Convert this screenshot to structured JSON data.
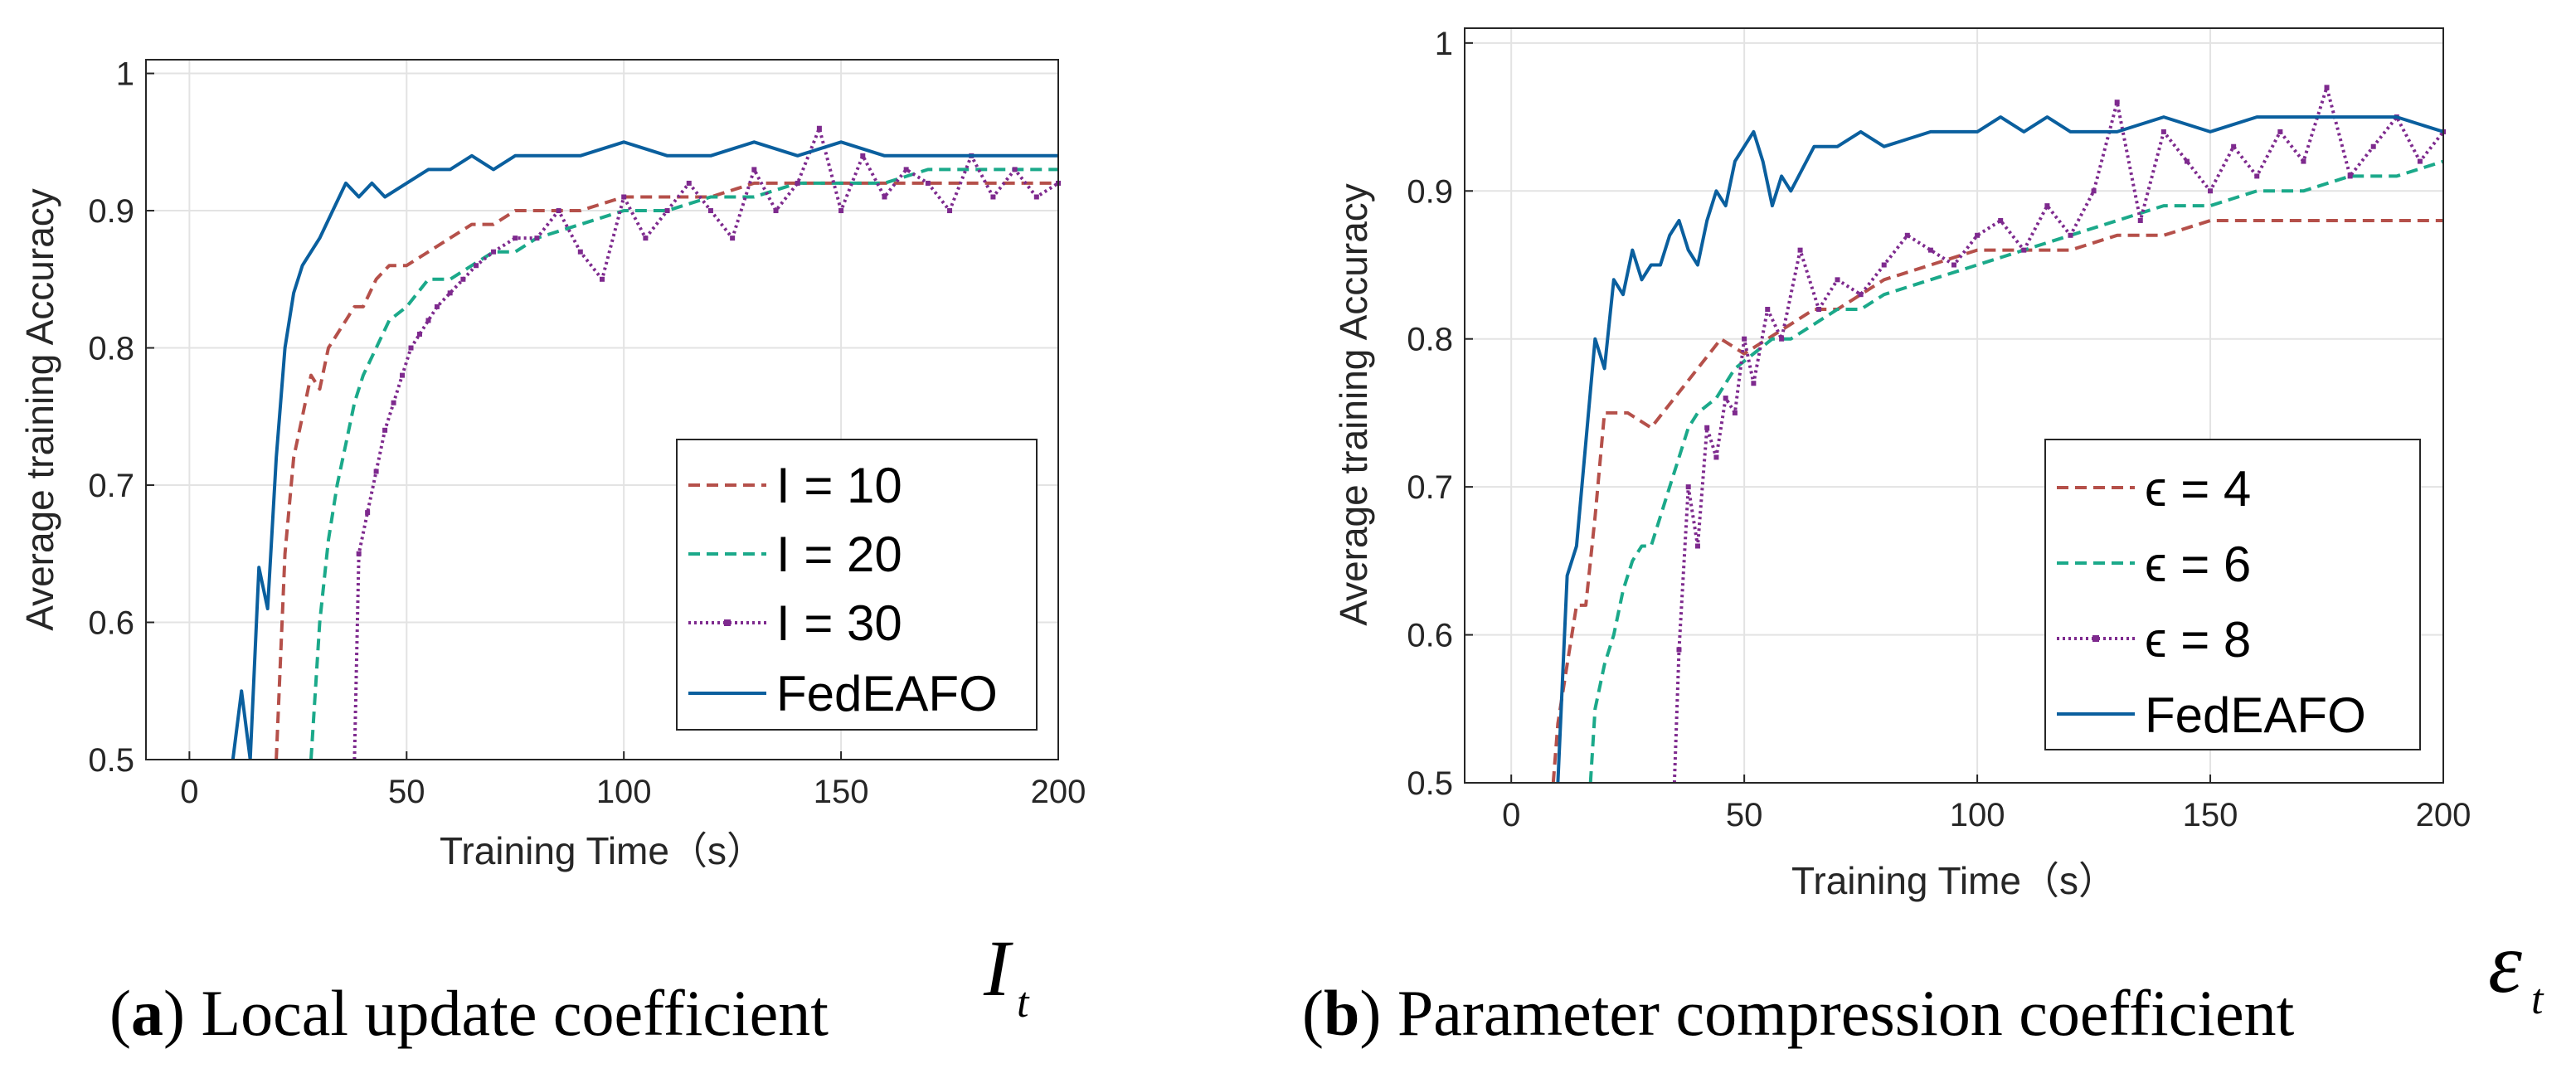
{
  "chart_data": [
    {
      "type": "line",
      "panel_label": "a",
      "caption": "Local update coefficient",
      "caption_symbol": "I",
      "caption_subscript": "t",
      "xlabel": "Training Time（s）",
      "ylabel": "Average training Accuracy",
      "xlim": [
        -10,
        200
      ],
      "ylim": [
        0.5,
        1.01
      ],
      "xticks": [
        "0",
        "50",
        "100",
        "150",
        "200"
      ],
      "yticks": [
        "0.5",
        "0.6",
        "0.7",
        "0.8",
        "0.9",
        "1"
      ],
      "grid": true,
      "legend_position": "right",
      "series": [
        {
          "name": "I = 10",
          "color": "#B5504A",
          "style": "dashed",
          "x": [
            20,
            22,
            24,
            26,
            28,
            30,
            32,
            34,
            36,
            38,
            40,
            43,
            46,
            50,
            55,
            60,
            65,
            70,
            75,
            80,
            90,
            100,
            110,
            120,
            130,
            140,
            150,
            160,
            170,
            180,
            190,
            200
          ],
          "y": [
            0.5,
            0.65,
            0.72,
            0.75,
            0.78,
            0.77,
            0.8,
            0.81,
            0.82,
            0.83,
            0.83,
            0.85,
            0.86,
            0.86,
            0.87,
            0.88,
            0.89,
            0.89,
            0.9,
            0.9,
            0.9,
            0.91,
            0.91,
            0.91,
            0.92,
            0.92,
            0.92,
            0.92,
            0.92,
            0.92,
            0.92,
            0.92
          ]
        },
        {
          "name": "I = 20",
          "color": "#1BA98A",
          "style": "dashed",
          "x": [
            28,
            30,
            32,
            34,
            36,
            38,
            40,
            43,
            46,
            50,
            55,
            60,
            65,
            70,
            75,
            80,
            90,
            100,
            110,
            120,
            130,
            140,
            150,
            160,
            170,
            180,
            190,
            200
          ],
          "y": [
            0.5,
            0.6,
            0.66,
            0.7,
            0.73,
            0.76,
            0.78,
            0.8,
            0.82,
            0.83,
            0.85,
            0.85,
            0.86,
            0.87,
            0.87,
            0.88,
            0.89,
            0.9,
            0.9,
            0.91,
            0.91,
            0.92,
            0.92,
            0.92,
            0.93,
            0.93,
            0.93,
            0.93
          ]
        },
        {
          "name": "I = 30",
          "color": "#7E2A8E",
          "style": "dotted",
          "x": [
            38,
            39,
            41,
            43,
            45,
            47,
            49,
            51,
            53,
            55,
            57,
            60,
            63,
            66,
            70,
            75,
            80,
            85,
            90,
            95,
            100,
            105,
            110,
            115,
            120,
            125,
            130,
            135,
            140,
            145,
            150,
            155,
            160,
            165,
            170,
            175,
            180,
            185,
            190,
            195,
            200
          ],
          "y": [
            0.5,
            0.65,
            0.68,
            0.71,
            0.74,
            0.76,
            0.78,
            0.8,
            0.81,
            0.82,
            0.83,
            0.84,
            0.85,
            0.86,
            0.87,
            0.88,
            0.88,
            0.9,
            0.87,
            0.85,
            0.91,
            0.88,
            0.9,
            0.92,
            0.9,
            0.88,
            0.93,
            0.9,
            0.92,
            0.96,
            0.9,
            0.94,
            0.91,
            0.93,
            0.92,
            0.9,
            0.94,
            0.91,
            0.93,
            0.91,
            0.92
          ]
        },
        {
          "name": "FedEAFO",
          "color": "#0A5F9E",
          "style": "solid",
          "x": [
            10,
            12,
            14,
            16,
            18,
            20,
            22,
            24,
            26,
            28,
            30,
            33,
            36,
            39,
            42,
            45,
            50,
            55,
            60,
            65,
            70,
            75,
            80,
            90,
            100,
            110,
            120,
            130,
            140,
            150,
            160,
            170,
            180,
            190,
            200
          ],
          "y": [
            0.5,
            0.55,
            0.5,
            0.64,
            0.61,
            0.72,
            0.8,
            0.84,
            0.86,
            0.87,
            0.88,
            0.9,
            0.92,
            0.91,
            0.92,
            0.91,
            0.92,
            0.93,
            0.93,
            0.94,
            0.93,
            0.94,
            0.94,
            0.94,
            0.95,
            0.94,
            0.94,
            0.95,
            0.94,
            0.95,
            0.94,
            0.94,
            0.94,
            0.94,
            0.94
          ]
        }
      ],
      "legend_text": [
        "I = 10",
        "I = 20",
        "I = 30",
        "FedEAFO"
      ]
    },
    {
      "type": "line",
      "panel_label": "b",
      "caption": "Parameter compression coefficient",
      "caption_symbol": "ε",
      "caption_subscript": "t",
      "xlabel": "Training Time（s）",
      "ylabel": "Average training Accuracy",
      "xlim": [
        -10,
        200
      ],
      "ylim": [
        0.5,
        1.01
      ],
      "xticks": [
        "0",
        "50",
        "100",
        "150",
        "200"
      ],
      "yticks": [
        "0.5",
        "0.6",
        "0.7",
        "0.8",
        "0.9",
        "1"
      ],
      "grid": true,
      "legend_position": "right",
      "series": [
        {
          "name": "ϵ = 4",
          "color": "#B5504A",
          "style": "dashed",
          "x": [
            9,
            10,
            12,
            14,
            16,
            18,
            20,
            25,
            30,
            35,
            40,
            45,
            50,
            55,
            60,
            65,
            70,
            75,
            80,
            90,
            100,
            110,
            120,
            130,
            140,
            150,
            160,
            170,
            180,
            190,
            200
          ],
          "y": [
            0.5,
            0.54,
            0.58,
            0.62,
            0.62,
            0.68,
            0.75,
            0.75,
            0.74,
            0.76,
            0.78,
            0.8,
            0.79,
            0.8,
            0.81,
            0.82,
            0.82,
            0.83,
            0.84,
            0.85,
            0.86,
            0.86,
            0.86,
            0.87,
            0.87,
            0.88,
            0.88,
            0.88,
            0.88,
            0.88,
            0.88
          ]
        },
        {
          "name": "ϵ = 6",
          "color": "#1BA98A",
          "style": "dashed",
          "x": [
            17,
            18,
            20,
            22,
            24,
            26,
            28,
            30,
            32,
            34,
            36,
            38,
            40,
            44,
            48,
            52,
            56,
            60,
            65,
            70,
            75,
            80,
            90,
            100,
            110,
            120,
            130,
            140,
            150,
            160,
            170,
            180,
            190,
            200
          ],
          "y": [
            0.5,
            0.55,
            0.58,
            0.6,
            0.63,
            0.65,
            0.66,
            0.66,
            0.68,
            0.7,
            0.72,
            0.74,
            0.75,
            0.76,
            0.78,
            0.79,
            0.8,
            0.8,
            0.81,
            0.82,
            0.82,
            0.83,
            0.84,
            0.85,
            0.86,
            0.87,
            0.88,
            0.89,
            0.89,
            0.9,
            0.9,
            0.91,
            0.91,
            0.92
          ]
        },
        {
          "name": "ϵ = 8",
          "color": "#7E2A8E",
          "style": "dotted",
          "x": [
            35,
            36,
            38,
            40,
            42,
            44,
            46,
            48,
            50,
            52,
            55,
            58,
            62,
            66,
            70,
            75,
            80,
            85,
            90,
            95,
            100,
            105,
            110,
            115,
            120,
            125,
            130,
            135,
            140,
            145,
            150,
            155,
            160,
            165,
            170,
            175,
            180,
            185,
            190,
            195,
            200
          ],
          "y": [
            0.5,
            0.59,
            0.7,
            0.66,
            0.74,
            0.72,
            0.76,
            0.75,
            0.8,
            0.77,
            0.82,
            0.8,
            0.86,
            0.82,
            0.84,
            0.83,
            0.85,
            0.87,
            0.86,
            0.85,
            0.87,
            0.88,
            0.86,
            0.89,
            0.87,
            0.9,
            0.96,
            0.88,
            0.94,
            0.92,
            0.9,
            0.93,
            0.91,
            0.94,
            0.92,
            0.97,
            0.91,
            0.93,
            0.95,
            0.92,
            0.94
          ]
        },
        {
          "name": "FedEAFO",
          "color": "#0A5F9E",
          "style": "solid",
          "x": [
            10,
            12,
            14,
            16,
            18,
            20,
            22,
            24,
            26,
            28,
            30,
            32,
            34,
            36,
            38,
            40,
            42,
            44,
            46,
            48,
            50,
            52,
            54,
            56,
            58,
            60,
            65,
            70,
            75,
            80,
            90,
            100,
            105,
            110,
            115,
            120,
            130,
            140,
            150,
            160,
            170,
            180,
            190,
            200
          ],
          "y": [
            0.5,
            0.64,
            0.66,
            0.73,
            0.8,
            0.78,
            0.84,
            0.83,
            0.86,
            0.84,
            0.85,
            0.85,
            0.87,
            0.88,
            0.86,
            0.85,
            0.88,
            0.9,
            0.89,
            0.92,
            0.93,
            0.94,
            0.92,
            0.89,
            0.91,
            0.9,
            0.93,
            0.93,
            0.94,
            0.93,
            0.94,
            0.94,
            0.95,
            0.94,
            0.95,
            0.94,
            0.94,
            0.95,
            0.94,
            0.95,
            0.95,
            0.95,
            0.95,
            0.94
          ]
        }
      ],
      "legend_text": [
        "= 4",
        "= 6",
        "= 8",
        "FedEAFO"
      ],
      "legend_symbol": "ϵ"
    }
  ]
}
